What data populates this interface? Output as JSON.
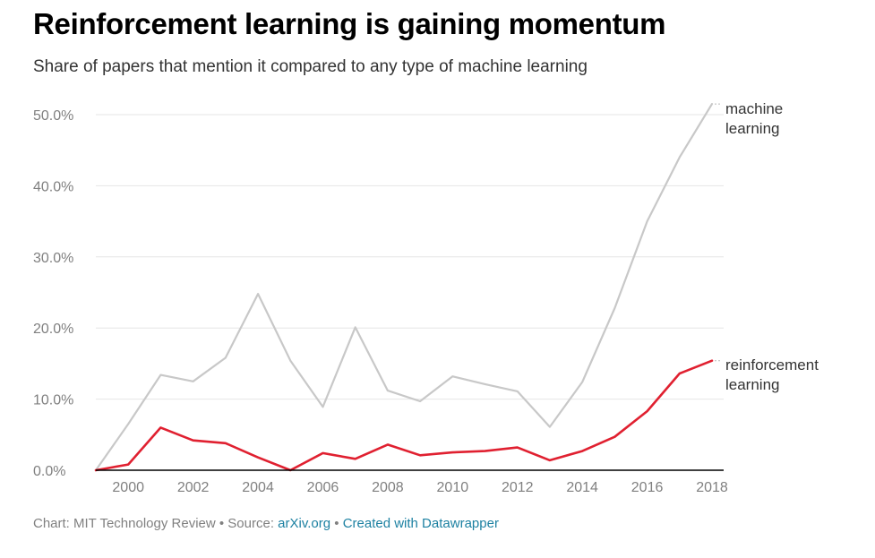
{
  "header": {
    "title": "Reinforcement learning is gaining momentum",
    "subtitle": "Share of papers that mention it compared to any type of machine learning"
  },
  "chart_data": {
    "type": "line",
    "x": [
      1999,
      2000,
      2001,
      2002,
      2003,
      2004,
      2005,
      2006,
      2007,
      2008,
      2009,
      2010,
      2011,
      2012,
      2013,
      2014,
      2015,
      2016,
      2017,
      2018
    ],
    "series": [
      {
        "name": "machine learning",
        "label_lines": [
          "machine",
          "learning"
        ],
        "color": "#c8c8c8",
        "values": [
          0.0,
          6.5,
          13.4,
          12.5,
          15.8,
          24.8,
          15.4,
          8.9,
          20.1,
          11.2,
          9.7,
          13.2,
          12.1,
          11.1,
          6.1,
          12.4,
          22.8,
          35.0,
          44.0,
          51.5
        ]
      },
      {
        "name": "reinforcement learning",
        "label_lines": [
          "reinforcement",
          "learning"
        ],
        "color": "#e02030",
        "values": [
          0.0,
          0.8,
          6.0,
          4.2,
          3.8,
          1.8,
          0.0,
          2.4,
          1.6,
          3.6,
          2.1,
          2.5,
          2.7,
          3.2,
          1.4,
          2.7,
          4.7,
          8.3,
          13.6,
          15.4
        ]
      }
    ],
    "x_ticks": [
      2000,
      2002,
      2004,
      2006,
      2008,
      2010,
      2012,
      2014,
      2016,
      2018
    ],
    "x_tick_labels": [
      "2000",
      "2002",
      "2004",
      "2006",
      "2008",
      "2010",
      "2012",
      "2014",
      "2016",
      "2018"
    ],
    "y_ticks": [
      0,
      10,
      20,
      30,
      40,
      50
    ],
    "y_tick_labels": [
      "0.0%",
      "10.0%",
      "20.0%",
      "30.0%",
      "40.0%",
      "50.0%"
    ],
    "xlim": [
      1999,
      2018
    ],
    "ylim": [
      0,
      50
    ],
    "grid": true,
    "xlabel": "",
    "ylabel": "",
    "title": "Reinforcement learning is gaining momentum"
  },
  "footer": {
    "credit": "Chart: MIT Technology Review",
    "separator": " • ",
    "source_prefix": "Source: ",
    "source_link": "arXiv.org",
    "created_with": "Created with Datawrapper"
  },
  "colors": {
    "grid": "#e6e6e6",
    "baseline": "#000000",
    "link": "#1d81a2"
  }
}
